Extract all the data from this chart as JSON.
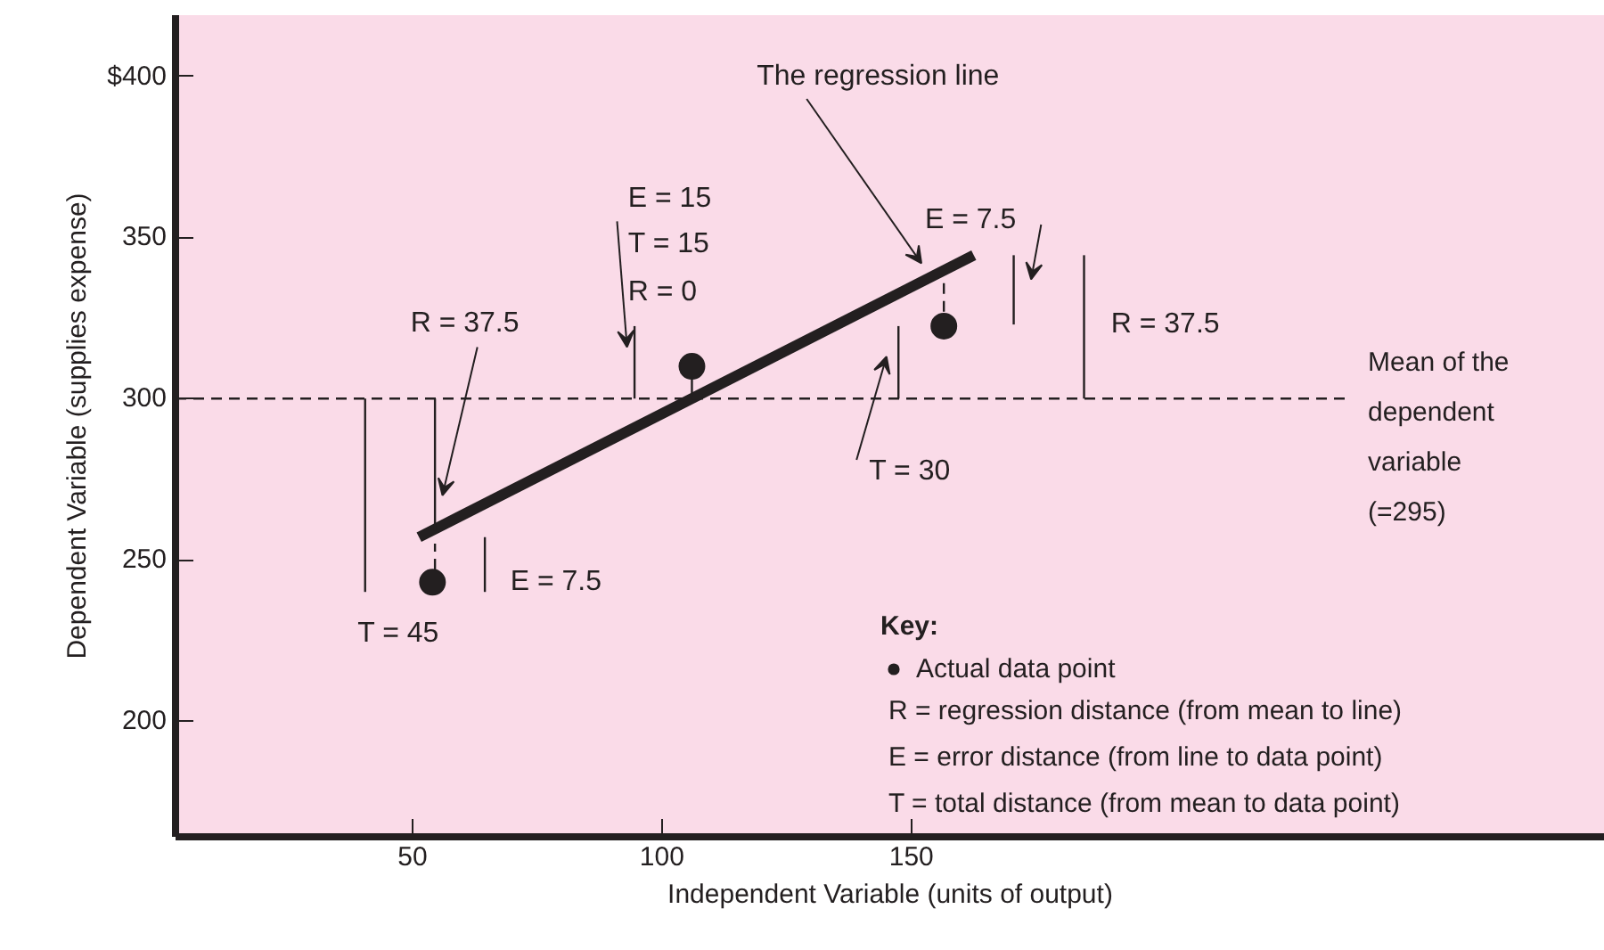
{
  "chart_data": {
    "type": "scatter",
    "xlabel": "Independent Variable (units of output)",
    "ylabel": "Dependent Variable (supplies expense)",
    "xlim": [
      2.5,
      289
    ],
    "ylim": [
      164,
      419
    ],
    "xticks": [
      50,
      100,
      150
    ],
    "yticks": [
      200,
      250,
      300,
      350,
      {
        "value": 400,
        "label": "$400"
      }
    ],
    "grid": false,
    "legend": "bottom right",
    "legend_title": "Key:",
    "series": [
      {
        "name": "Actual data point",
        "color": "#231f20",
        "x": [
          54,
          106,
          156.5
        ],
        "values": [
          243,
          310,
          322.5
        ]
      },
      {
        "type": "line",
        "color": "#231f20",
        "x": [
          51.3,
          162.5
        ],
        "values": [
          257,
          344.5
        ]
      },
      {
        "type": "line",
        "color": "#231f20",
        "x": [
          40.5,
          40.5
        ],
        "values": [
          300,
          240
        ]
      },
      {
        "type": "line",
        "color": "#231f20",
        "x": [
          54.5,
          54.5
        ],
        "values": [
          300,
          259
        ]
      },
      {
        "type": "line",
        "color": "#231f20",
        "line_style": "dashed",
        "x": [
          54.5,
          54.5
        ],
        "values": [
          247,
          255
        ]
      },
      {
        "type": "line",
        "color": "#231f20",
        "x": [
          64.5,
          64.5
        ],
        "values": [
          257,
          240
        ]
      },
      {
        "type": "line",
        "color": "#231f20",
        "x": [
          94.5,
          94.5
        ],
        "values": [
          300,
          322.5
        ]
      },
      {
        "type": "line",
        "color": "#231f20",
        "x": [
          106,
          106
        ],
        "values": [
          300,
          307
        ]
      },
      {
        "type": "line",
        "color": "#231f20",
        "x": [
          147.4,
          147.4
        ],
        "values": [
          300,
          322.5
        ]
      },
      {
        "type": "line",
        "color": "#231f20",
        "line_style": "dashed",
        "x": [
          156.5,
          156.5
        ],
        "values": [
          327,
          338
        ]
      },
      {
        "type": "line",
        "color": "#231f20",
        "x": [
          170.5,
          170.5
        ],
        "values": [
          344.5,
          323
        ]
      },
      {
        "type": "line",
        "color": "#231f20",
        "x": [
          184.6,
          184.6
        ],
        "values": [
          300,
          344.5
        ]
      }
    ],
    "ref_lines": [
      {
        "axis": "y",
        "value": 300,
        "color": "#231f20",
        "line_style": "dashed"
      }
    ],
    "annotations": [
      "The regression line",
      "E = 15",
      "T = 15",
      "R = 0",
      "R = 37.5",
      "T = 45",
      "E = 7.5",
      "E = 7.5",
      "R = 37.5",
      "T = 30",
      "Mean of the dependent variable (=295)",
      "R = regression distance (from mean to line)",
      "E = error distance (from line to data point)",
      "T = total distance (from mean to data point)"
    ]
  }
}
